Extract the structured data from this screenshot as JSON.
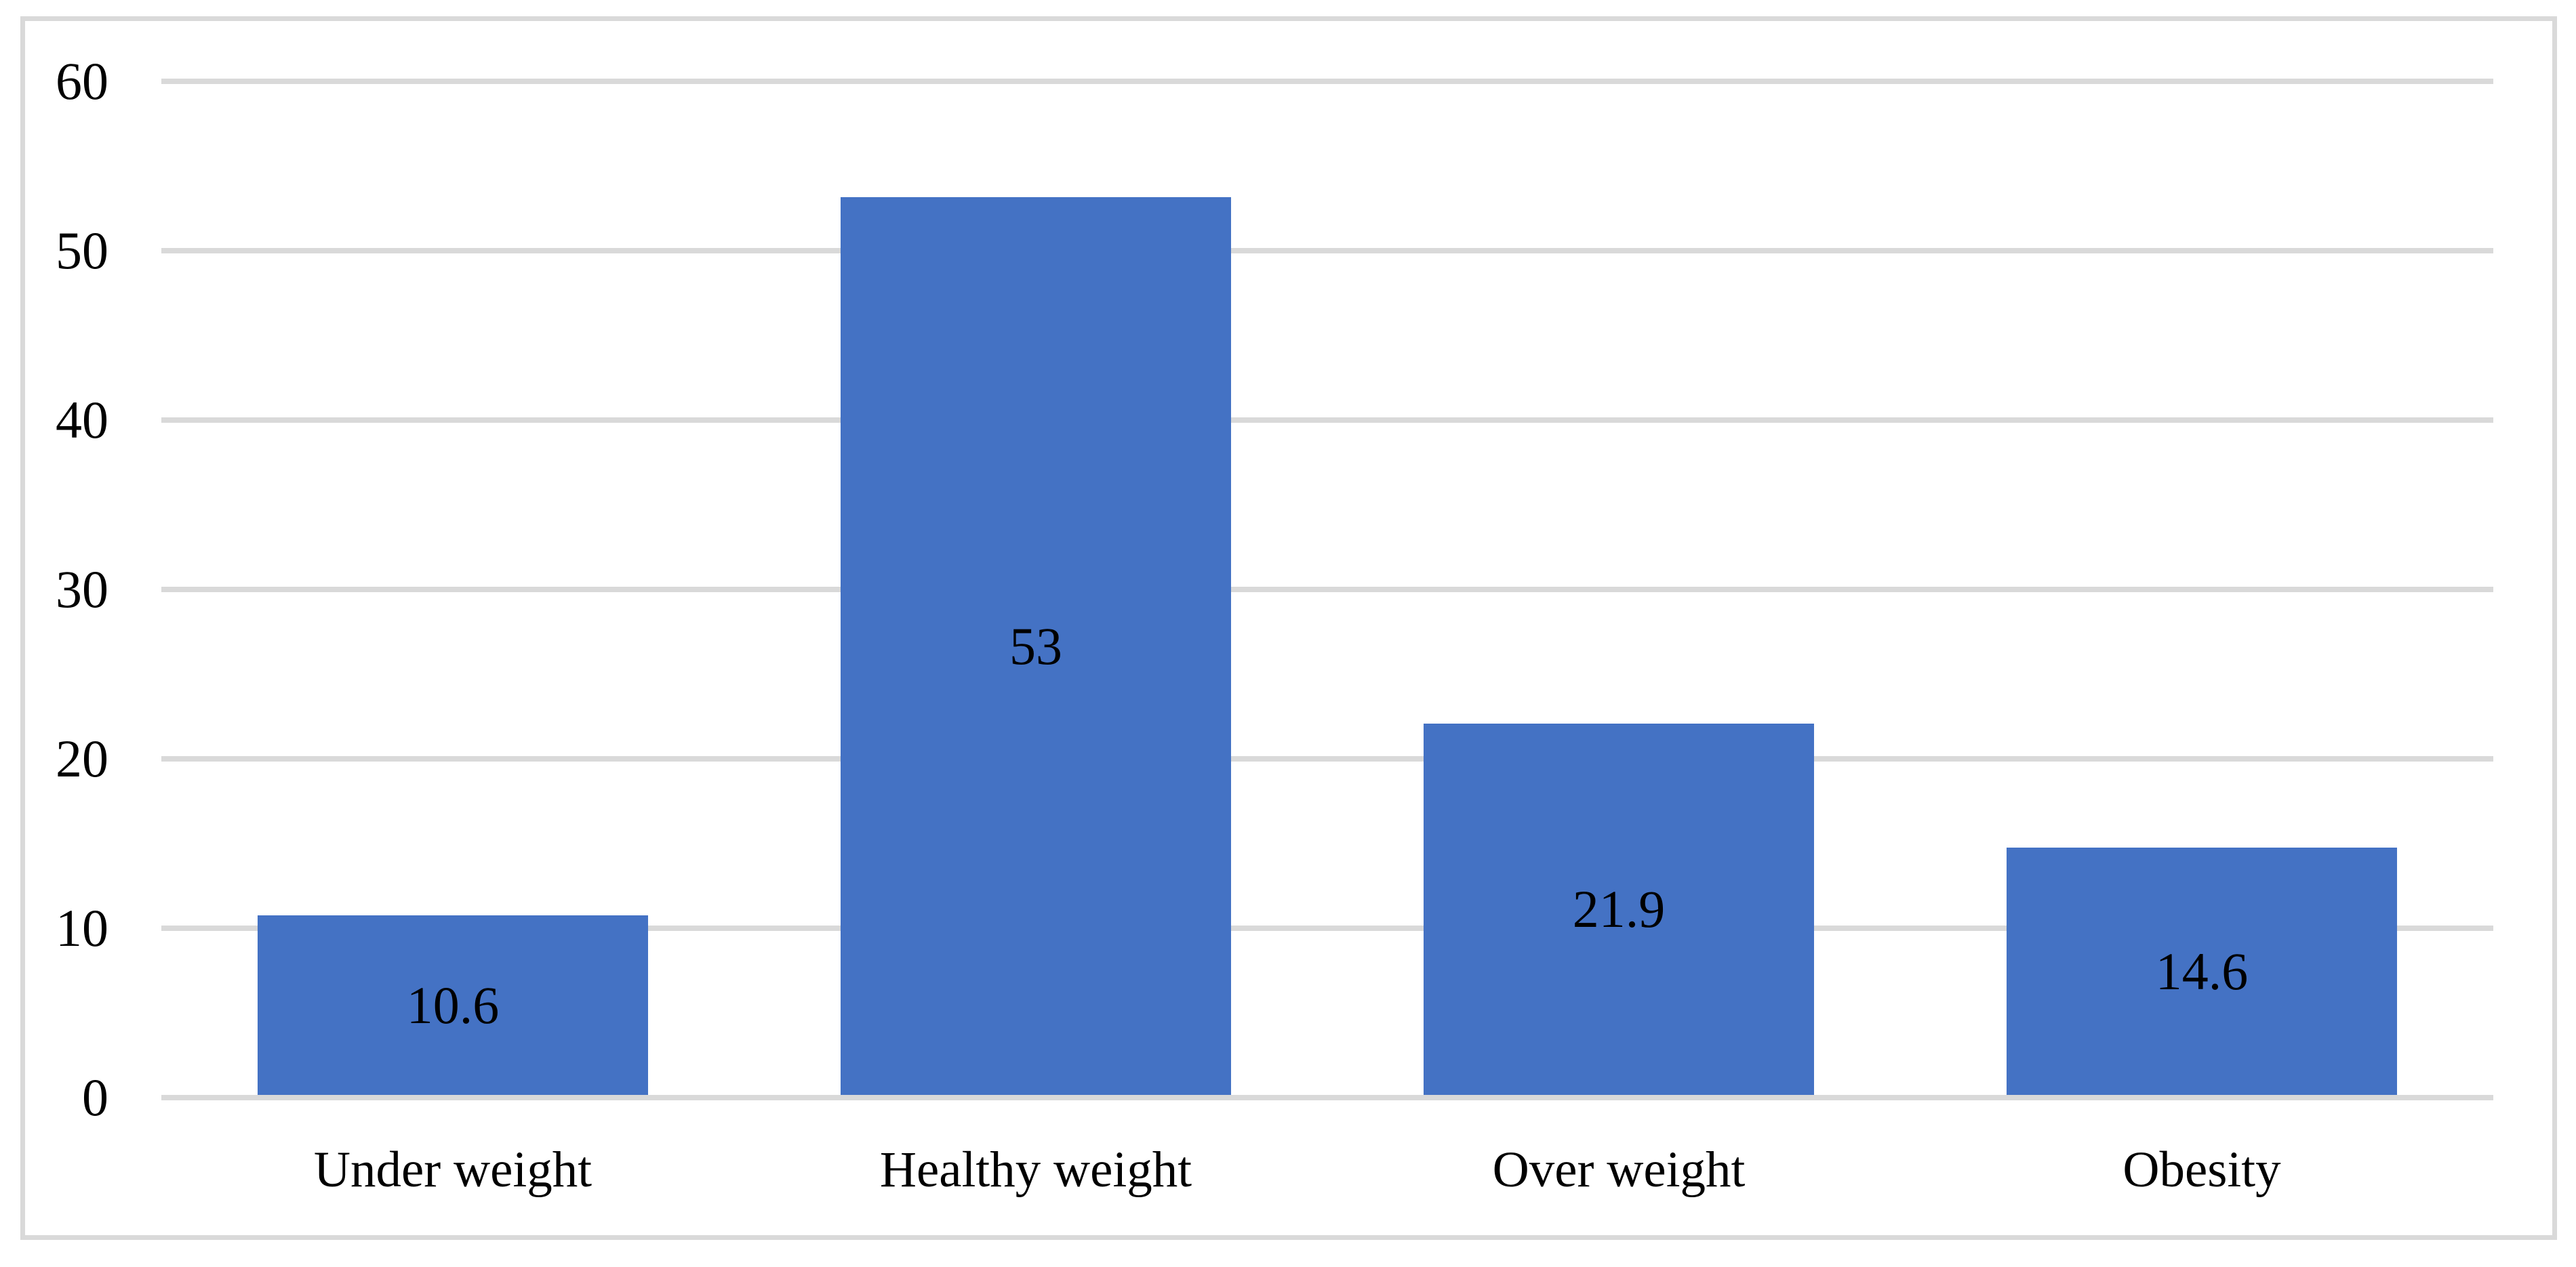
{
  "figure": {
    "background": "#FFFFFF",
    "frame_border_color": "#D9D9D9"
  },
  "chart_data": {
    "type": "bar",
    "title": "",
    "xlabel": "",
    "ylabel": "",
    "categories": [
      "Under weight",
      "Healthy weight",
      "Over weight",
      "Obesity"
    ],
    "values": [
      10.6,
      53,
      21.9,
      14.6
    ],
    "data_labels": [
      "10.6",
      "53",
      "21.9",
      "14.6"
    ],
    "yticks": [
      60,
      50,
      40,
      30,
      20,
      10,
      0
    ],
    "ylim": [
      0,
      60
    ],
    "grid": "horizontal-only",
    "legend": "none",
    "data_label_position": "inside-center",
    "colors": {
      "bar": "#4472C4",
      "gridline": "#D9D9D9",
      "text": "#000000",
      "plot_background": "#FFFFFF"
    }
  }
}
